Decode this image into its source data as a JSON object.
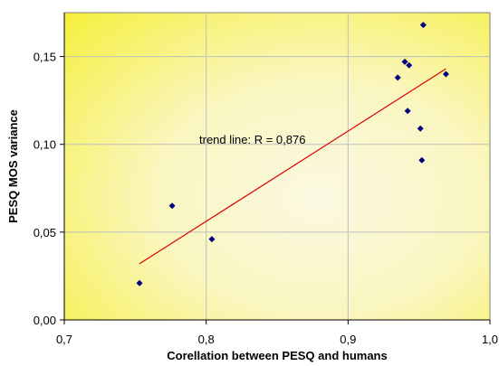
{
  "chart_data": {
    "type": "scatter",
    "xlabel": "Corellation between PESQ and humans",
    "ylabel": "PESQ MOS variance",
    "xlim": [
      0.7,
      1.0
    ],
    "ylim": [
      0.0,
      0.175
    ],
    "x_ticks": [
      0.7,
      0.8,
      0.9,
      1.0
    ],
    "x_tick_labels": [
      "0,7",
      "0,8",
      "0,9",
      "1,0"
    ],
    "y_ticks": [
      0.0,
      0.05,
      0.1,
      0.15
    ],
    "y_tick_labels": [
      "0,00",
      "0,05",
      "0,10",
      "0,15"
    ],
    "grid": true,
    "legend": "none",
    "series": [
      {
        "points": [
          {
            "x": 0.753,
            "y": 0.021
          },
          {
            "x": 0.776,
            "y": 0.065
          },
          {
            "x": 0.804,
            "y": 0.046
          },
          {
            "x": 0.935,
            "y": 0.138
          },
          {
            "x": 0.94,
            "y": 0.147
          },
          {
            "x": 0.942,
            "y": 0.119
          },
          {
            "x": 0.943,
            "y": 0.145
          },
          {
            "x": 0.951,
            "y": 0.109
          },
          {
            "x": 0.952,
            "y": 0.091
          },
          {
            "x": 0.953,
            "y": 0.168
          },
          {
            "x": 0.969,
            "y": 0.14
          }
        ]
      }
    ],
    "trend_line": {
      "x1": 0.753,
      "y1": 0.032,
      "x2": 0.969,
      "y2": 0.143
    },
    "annotation": "trend line: R = 0,876",
    "colors": {
      "marker": "#00007f",
      "trend": "#e00000",
      "grid": "#bfbfbf",
      "plot_bg_light": "#fbf9e2",
      "plot_bg_yellow": "#f5f03a"
    }
  }
}
